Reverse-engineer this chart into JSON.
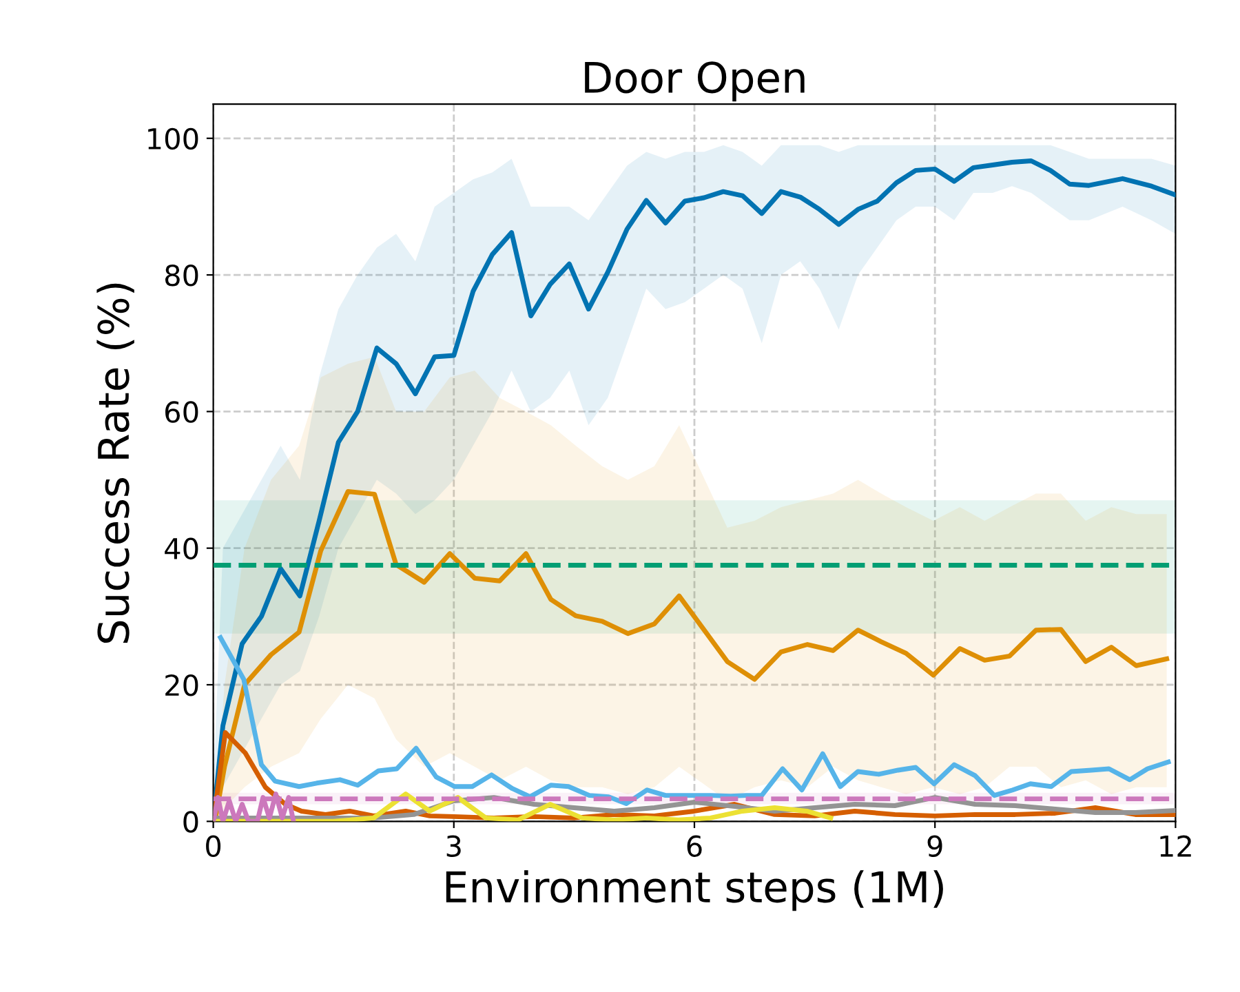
{
  "chart_data": {
    "type": "line",
    "title": "Door Open",
    "xlabel": "Environment steps (1M)",
    "ylabel": "Success Rate (%)",
    "xlim": [
      0,
      12
    ],
    "ylim": [
      0,
      105
    ],
    "xticks": [
      0,
      3,
      6,
      9,
      12
    ],
    "yticks": [
      0,
      20,
      40,
      60,
      80,
      100
    ],
    "grid": true,
    "line_style": "solid",
    "series": [
      {
        "color": "#0173b2",
        "x": [
          0,
          0.12,
          0.36,
          0.6,
          0.84,
          1.08,
          1.32,
          1.56,
          1.8,
          2.04,
          2.28,
          2.52,
          2.76,
          3.0,
          3.24,
          3.48,
          3.72,
          3.96,
          4.2,
          4.44,
          4.68,
          4.92,
          5.16,
          5.4,
          5.64,
          5.88,
          6.12,
          6.36,
          6.6,
          6.84,
          7.08,
          7.32,
          7.56,
          7.8,
          8.04,
          8.28,
          8.52,
          8.76,
          9.0,
          9.24,
          9.48,
          9.72,
          9.96,
          10.2,
          10.44,
          10.68,
          10.92,
          11.34,
          11.7,
          12
        ],
        "values": [
          0,
          14,
          26,
          30,
          37,
          33,
          44,
          55.5,
          60,
          69.3,
          67,
          62.6,
          68,
          68.2,
          77.6,
          83,
          86.2,
          74,
          78.6,
          81.6,
          75,
          80.4,
          86.7,
          90.9,
          87.6,
          90.8,
          91.3,
          92.2,
          91.6,
          89,
          92.2,
          91.4,
          89.6,
          87.4,
          89.6,
          90.8,
          93.5,
          95.3,
          95.5,
          93.7,
          95.7,
          96.1,
          96.5,
          96.7,
          95.3,
          93.3,
          93.1,
          94.1,
          93,
          91.7
        ],
        "lower": [
          0,
          5,
          10,
          15,
          20,
          22,
          30,
          40,
          45,
          50,
          48,
          45,
          47,
          50,
          55,
          60,
          66,
          60,
          62,
          66,
          58,
          62,
          70,
          78,
          75,
          76,
          78,
          80,
          78,
          70,
          80,
          82,
          78,
          72,
          80,
          84,
          88,
          90,
          90,
          88,
          92,
          92,
          93,
          92,
          90,
          88,
          88,
          90,
          88,
          86
        ],
        "upper": [
          5,
          40,
          45,
          50,
          55,
          50,
          65,
          75,
          80,
          84,
          86,
          82,
          90,
          92,
          94,
          95,
          97,
          90,
          90,
          90,
          88,
          92,
          96,
          98,
          97,
          98,
          98,
          99,
          98,
          96,
          99,
          99,
          99,
          98,
          99,
          99,
          99,
          99,
          99,
          99,
          99,
          99,
          99,
          99,
          99,
          98,
          97,
          97,
          97,
          96
        ]
      },
      {
        "color": "#de8f05",
        "x": [
          0.03,
          0.14,
          0.39,
          0.72,
          1.07,
          1.34,
          1.68,
          2.01,
          2.28,
          2.63,
          2.95,
          3.26,
          3.57,
          3.9,
          4.21,
          4.52,
          4.85,
          5.17,
          5.5,
          5.81,
          6.41,
          6.75,
          7.08,
          7.41,
          7.73,
          8.04,
          8.33,
          8.64,
          8.98,
          9.31,
          9.62,
          9.93,
          10.26,
          10.57,
          10.88,
          11.2,
          11.51,
          11.89
        ],
        "values": [
          0.6,
          8,
          20,
          24.4,
          27.7,
          39.6,
          48.3,
          47.9,
          37.6,
          35,
          39.2,
          35.6,
          35.2,
          39.2,
          32.5,
          30.1,
          29.3,
          27.5,
          28.9,
          33,
          23.4,
          20.8,
          24.8,
          25.9,
          25,
          28,
          26.3,
          24.6,
          21.4,
          25.3,
          23.6,
          24.2,
          28,
          28.1,
          23.4,
          25.5,
          22.8,
          23.8
        ],
        "lower": [
          0,
          2,
          5,
          8,
          10,
          15,
          20,
          18,
          12,
          8,
          10,
          8,
          6,
          8,
          6,
          5,
          5,
          4,
          5,
          8,
          3,
          5,
          6,
          5,
          8,
          6,
          5,
          4,
          5,
          4,
          5,
          8,
          8,
          5,
          6,
          4,
          5,
          5
        ],
        "upper": [
          2,
          20,
          40,
          50,
          55,
          65,
          67,
          68,
          60,
          60,
          65,
          66,
          62,
          60,
          58,
          55,
          52,
          50,
          52,
          58,
          43,
          44,
          46,
          47,
          48,
          50,
          48,
          46,
          44,
          46,
          44,
          46,
          48,
          48,
          44,
          46,
          45,
          45
        ]
      },
      {
        "color": "#56b4e9",
        "x": [
          0.09,
          0.38,
          0.6,
          0.77,
          1.07,
          1.29,
          1.58,
          1.8,
          2.06,
          2.29,
          2.53,
          2.78,
          3.01,
          3.23,
          3.47,
          3.73,
          3.95,
          4.21,
          4.43,
          4.69,
          4.93,
          5.15,
          5.41,
          5.64,
          5.98,
          6.2,
          6.45,
          6.65,
          6.84,
          7.1,
          7.34,
          7.6,
          7.82,
          8.04,
          8.3,
          8.54,
          8.76,
          8.99,
          9.24,
          9.5,
          9.74,
          9.97,
          10.19,
          10.45,
          10.7,
          10.95,
          11.17,
          11.43,
          11.65,
          11.91
        ],
        "values": [
          26.9,
          20.8,
          8.3,
          5.9,
          5.1,
          5.6,
          6.1,
          5.3,
          7.4,
          7.7,
          10.7,
          6.5,
          5.1,
          5.1,
          6.8,
          4.8,
          3.6,
          5.3,
          5.1,
          3.8,
          3.6,
          2.6,
          4.6,
          3.8,
          3.8,
          3.8,
          3.7,
          3.8,
          3.8,
          7.7,
          4.6,
          9.9,
          5.1,
          7.3,
          6.9,
          7.5,
          7.9,
          5.5,
          8.3,
          6.7,
          3.8,
          4.6,
          5.5,
          5.1,
          7.3,
          7.5,
          7.7,
          6.1,
          7.7,
          8.7
        ]
      },
      {
        "color": "#d55e00",
        "x": [
          0,
          0.15,
          0.4,
          0.65,
          0.9,
          1.1,
          1.4,
          1.7,
          2.0,
          2.4,
          2.7,
          3.0,
          3.5,
          4.0,
          4.5,
          5.0,
          5.5,
          6.0,
          6.5,
          7.0,
          7.5,
          8.0,
          8.5,
          9.0,
          9.5,
          10.0,
          10.5,
          11.0,
          11.5,
          12
        ],
        "values": [
          0,
          13,
          10,
          5,
          2.5,
          1.5,
          1,
          1.5,
          0.8,
          1.5,
          0.8,
          0.7,
          0.5,
          0.7,
          0.5,
          1,
          0.8,
          1.5,
          2.5,
          1,
          0.8,
          1.5,
          1,
          0.8,
          1,
          1,
          1.2,
          2,
          1,
          1
        ]
      },
      {
        "color": "#949494",
        "x": [
          0,
          1,
          2,
          2.5,
          3.0,
          3.5,
          4.0,
          4.5,
          5.0,
          5.5,
          6.0,
          6.5,
          7.0,
          7.5,
          8.0,
          8.5,
          9.0,
          9.5,
          10,
          10.5,
          11,
          11.5,
          12
        ],
        "values": [
          0.5,
          0.5,
          0.5,
          1,
          3,
          3.5,
          2.5,
          2,
          1.5,
          2,
          2.8,
          2.2,
          1.5,
          2,
          2.5,
          2.3,
          3.5,
          2.5,
          2.3,
          1.8,
          1.3,
          1.3,
          1.6
        ]
      },
      {
        "color": "#ece133",
        "x": [
          0,
          1.5,
          2.0,
          2.4,
          2.7,
          3.05,
          3.4,
          3.8,
          4.2,
          4.6,
          5.0,
          5.4,
          5.8,
          6.2,
          6.6,
          7.0,
          7.4,
          7.7
        ],
        "values": [
          0,
          0,
          0.5,
          4,
          1.5,
          3.5,
          0.5,
          0.2,
          2.5,
          0.5,
          0.2,
          0.5,
          0.2,
          0.5,
          1.5,
          2,
          1.5,
          0.5
        ]
      },
      {
        "color": "#cc78bc",
        "x": [
          0,
          0.06,
          0.12,
          0.2,
          0.28,
          0.36,
          0.44,
          0.55,
          0.62,
          0.7,
          0.78,
          0.86,
          0.94,
          1.0
        ],
        "values": [
          0,
          3.5,
          0,
          3,
          0,
          2.5,
          0,
          0,
          3.5,
          0.5,
          4,
          0.5,
          3.5,
          0
        ]
      }
    ],
    "ref_lines": [
      {
        "axis": "y",
        "value": 37.5,
        "color": "#029e73",
        "line_style": "dashed"
      },
      {
        "axis": "y",
        "value": 3.3,
        "color": "#cc78bc",
        "line_style": "dashed"
      }
    ],
    "bands": [
      {
        "axis": "y",
        "from": 27.5,
        "to": 47,
        "color": "#029e73"
      },
      {
        "axis": "y",
        "from": 2.5,
        "to": 4.2,
        "color": "#cc78bc"
      }
    ]
  }
}
